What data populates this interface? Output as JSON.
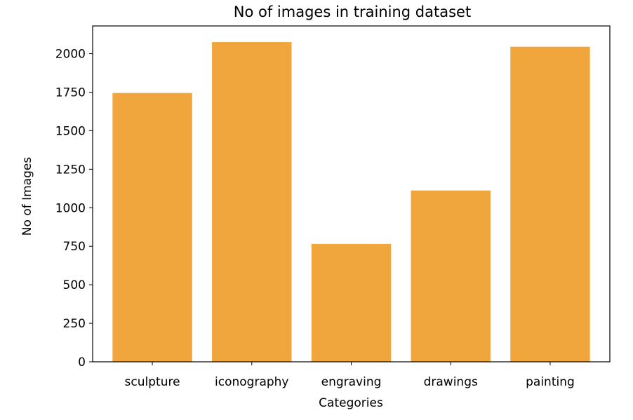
{
  "chart_data": {
    "type": "bar",
    "title": "No of images in training dataset",
    "xlabel": "Categories",
    "ylabel": "No of Images",
    "categories": [
      "sculpture",
      "iconography",
      "engraving",
      "drawings",
      "painting"
    ],
    "values": [
      1745,
      2075,
      765,
      1112,
      2045
    ],
    "ylim": [
      0,
      2180
    ],
    "yticks": [
      0,
      250,
      500,
      750,
      1000,
      1250,
      1500,
      1750,
      2000
    ],
    "bar_color": "#f0a63c",
    "grid": false,
    "legend": "none"
  }
}
